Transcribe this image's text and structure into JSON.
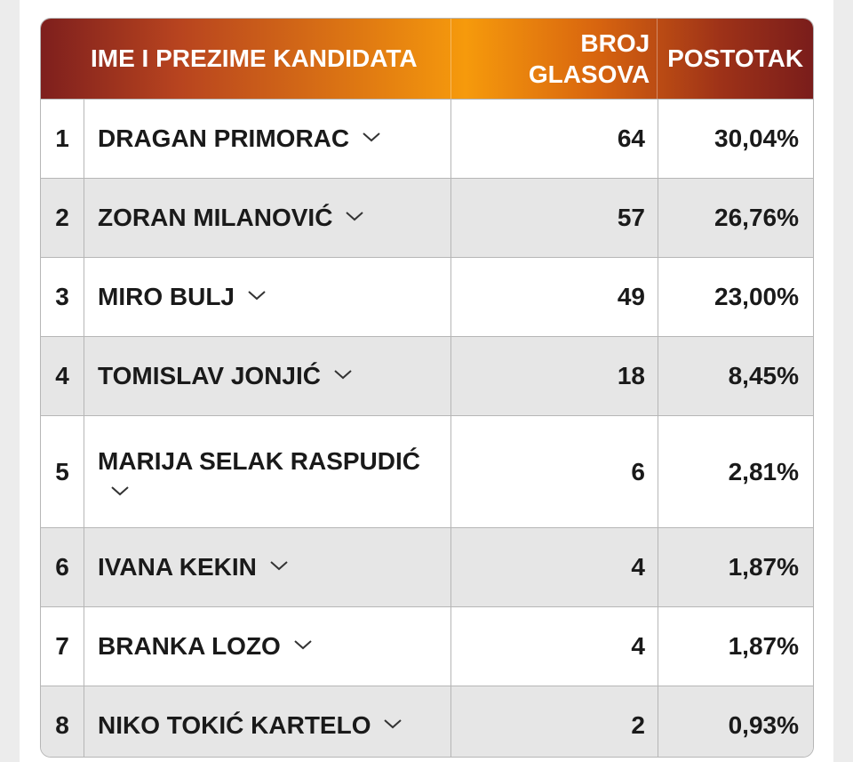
{
  "table": {
    "header": {
      "name": "IME I PREZIME KANDIDATA",
      "votes_line1": "BROJ",
      "votes_line2": "GLASOVA",
      "percent": "POSTOTAK"
    },
    "rows": [
      {
        "index": "1",
        "name": "DRAGAN PRIMORAC",
        "votes": "64",
        "percent": "30,04%"
      },
      {
        "index": "2",
        "name": "ZORAN MILANOVIĆ",
        "votes": "57",
        "percent": "26,76%"
      },
      {
        "index": "3",
        "name": "MIRO BULJ",
        "votes": "49",
        "percent": "23,00%"
      },
      {
        "index": "4",
        "name": "TOMISLAV JONJIĆ",
        "votes": "18",
        "percent": "8,45%"
      },
      {
        "index": "5",
        "name": "MARIJA SELAK RASPUDIĆ",
        "votes": "6",
        "percent": "2,81%"
      },
      {
        "index": "6",
        "name": "IVANA KEKIN",
        "votes": "4",
        "percent": "1,87%"
      },
      {
        "index": "7",
        "name": "BRANKA LOZO",
        "votes": "4",
        "percent": "1,87%"
      },
      {
        "index": "8",
        "name": "NIKO TOKIĆ KARTELO",
        "votes": "2",
        "percent": "0,93%"
      }
    ],
    "expand_icon": "chevron-down-icon",
    "colors": {
      "header_dark": "#7e1f1d",
      "header_bright": "#f69a0c",
      "row_alt": "#e6e6e6",
      "border": "#b6b6b6"
    }
  }
}
